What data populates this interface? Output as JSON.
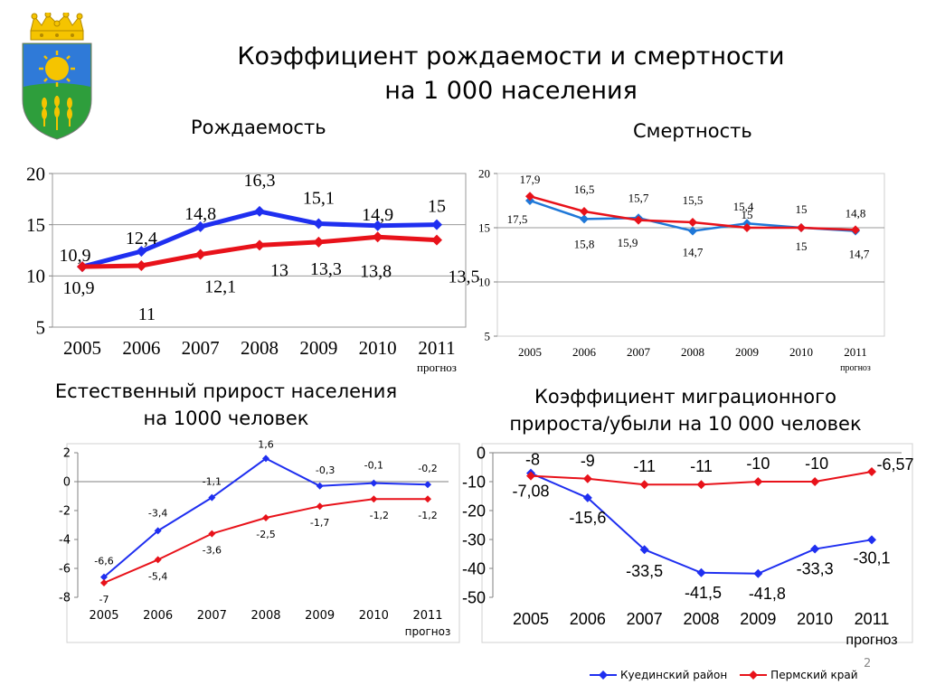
{
  "title": {
    "line1": "Коэффициент рождаемости и смертности",
    "line2": "на 1 000 населения"
  },
  "emblem": {
    "colors": {
      "gold": "#f5c400",
      "sky": "#2f7ad8",
      "field": "#2e9e3c"
    },
    "icon": "coat-of-arms-emblem"
  },
  "legend": [
    {
      "label": "Куединский район",
      "color": "#1f2ff0"
    },
    {
      "label": "Пермский край",
      "color": "#e8121a"
    }
  ],
  "page_number": "2",
  "chart_data": [
    {
      "id": "birth",
      "type": "line",
      "title": "Рождаемость",
      "categories": [
        "2005",
        "2006",
        "2007",
        "2008",
        "2009",
        "2010",
        "2011"
      ],
      "category_sublabels": {
        "2011": "прогноз"
      },
      "ylim": [
        5,
        20
      ],
      "yticks": [
        "5",
        "10",
        "15",
        "20"
      ],
      "grid": true,
      "series": [
        {
          "legend_index": 0,
          "color": "#1f2ff0",
          "values": [
            10.9,
            12.4,
            14.8,
            16.3,
            15.1,
            14.9,
            15
          ],
          "labels": [
            "10,9",
            "12,4",
            "14,8",
            "16,3",
            "15,1",
            "14,9",
            "15"
          ]
        },
        {
          "legend_index": 1,
          "color": "#e8121a",
          "values": [
            10.9,
            11,
            12.1,
            13,
            13.3,
            13.8,
            13.5
          ],
          "labels": [
            "10,9",
            "11",
            "12,1",
            "13",
            "13,3",
            "13,8",
            "13,5"
          ]
        }
      ]
    },
    {
      "id": "death",
      "type": "line",
      "title": "Смертность",
      "categories": [
        "2005",
        "2006",
        "2007",
        "2008",
        "2009",
        "2010",
        "2011"
      ],
      "category_sublabels": {
        "2011": "прогноз"
      },
      "ylim": [
        5,
        20
      ],
      "yticks": [
        "5",
        "10",
        "15",
        "20"
      ],
      "grid": true,
      "series": [
        {
          "legend_index": 0,
          "color": "#1f78d8",
          "values": [
            17.5,
            15.8,
            15.9,
            14.7,
            15.4,
            15,
            14.7
          ],
          "labels": [
            "17,5",
            "15,8",
            "15,9",
            "14,7",
            "15,4",
            "15",
            "14,7"
          ]
        },
        {
          "legend_index": 1,
          "color": "#e8121a",
          "values": [
            17.9,
            16.5,
            15.7,
            15.5,
            15,
            15,
            14.8
          ],
          "labels": [
            "17,9",
            "16,5",
            "15,7",
            "15,5",
            "15",
            "15",
            "14,8"
          ]
        }
      ]
    },
    {
      "id": "natural",
      "type": "line",
      "title": "Естественный прирост населения на 1000 человек",
      "title_lines": [
        "Естественный прирост населения",
        "на 1000 человек"
      ],
      "categories": [
        "2005",
        "2006",
        "2007",
        "2008",
        "2009",
        "2010",
        "2011"
      ],
      "category_sublabels": {
        "2011": "прогноз"
      },
      "ylim": [
        -8,
        2
      ],
      "yticks": [
        "-8",
        "-6",
        "-4",
        "-2",
        "0",
        "2"
      ],
      "grid": false,
      "series": [
        {
          "legend_index": 0,
          "color": "#1f2ff0",
          "values": [
            -6.6,
            -3.4,
            -1.1,
            1.6,
            -0.3,
            -0.1,
            -0.2
          ],
          "labels": [
            "-6,6",
            "-3,4",
            "-1,1",
            "1,6",
            "-0,3",
            "-0,1",
            "-0,2"
          ]
        },
        {
          "legend_index": 1,
          "color": "#e8121a",
          "values": [
            -7,
            -5.4,
            -3.6,
            -2.5,
            -1.7,
            -1.2,
            -1.2
          ],
          "labels": [
            "-7",
            "-5,4",
            "-3,6",
            "-2,5",
            "-1,7",
            "-1,2",
            "-1,2"
          ]
        }
      ]
    },
    {
      "id": "migration",
      "type": "line",
      "title": "Коэффициент миграционного прироста/убыли на 10 000 человек",
      "title_lines": [
        "Коэффициент миграционного",
        "прироста/убыли на 10 000 человек"
      ],
      "categories": [
        "2005",
        "2006",
        "2007",
        "2008",
        "2009",
        "2010",
        "2011"
      ],
      "category_sublabels": {
        "2011": "прогноз"
      },
      "ylim": [
        -50,
        0
      ],
      "yticks": [
        "-50",
        "-40",
        "-30",
        "-20",
        "-10",
        "0"
      ],
      "grid": false,
      "series": [
        {
          "legend_index": 0,
          "color": "#1f2ff0",
          "values": [
            -7.08,
            -15.6,
            -33.5,
            -41.5,
            -41.8,
            -33.3,
            -30.1
          ],
          "labels": [
            "-7,08",
            "-15,6",
            "-33,5",
            "-41,5",
            "-41,8",
            "-33,3",
            "-30,1"
          ]
        },
        {
          "legend_index": 1,
          "color": "#e8121a",
          "values": [
            -8,
            -9,
            -11,
            -11,
            -10,
            -10,
            -6.57
          ],
          "labels": [
            "-8",
            "-9",
            "-11",
            "-11",
            "-10",
            "-10",
            "-6,57"
          ]
        }
      ]
    }
  ]
}
